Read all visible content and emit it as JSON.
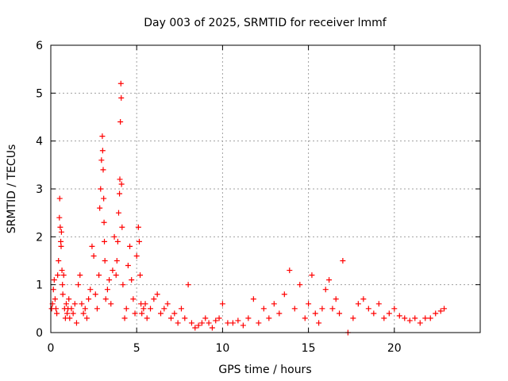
{
  "chart_data": {
    "type": "scatter",
    "title": "Day 003 of 2025, SRMTID for receiver lmmf",
    "xlabel": "GPS time / hours",
    "ylabel": "SRMTID / TECUs",
    "xlim": [
      0,
      25
    ],
    "ylim": [
      0,
      6
    ],
    "xticks": [
      0,
      5,
      10,
      15,
      20
    ],
    "yticks": [
      0,
      1,
      2,
      3,
      4,
      5,
      6
    ],
    "xtick_labels": [
      "0",
      "5",
      "10",
      "15",
      "20"
    ],
    "ytick_labels": [
      "0",
      "1",
      "2",
      "3",
      "4",
      "5",
      "6"
    ],
    "grid": true,
    "marker": "+",
    "color": "#ff0000",
    "series": [
      {
        "name": "SRMTID",
        "x": [
          0.05,
          0.1,
          0.15,
          0.2,
          0.25,
          0.3,
          0.35,
          0.4,
          0.45,
          0.5,
          0.52,
          0.55,
          0.58,
          0.6,
          0.62,
          0.65,
          0.68,
          0.7,
          0.75,
          0.8,
          0.85,
          0.9,
          0.95,
          1.0,
          1.05,
          1.1,
          1.2,
          1.3,
          1.4,
          1.5,
          1.6,
          1.7,
          1.8,
          1.9,
          2.0,
          2.1,
          2.2,
          2.3,
          2.4,
          2.5,
          2.6,
          2.7,
          2.8,
          2.85,
          2.9,
          2.95,
          3.0,
          3.02,
          3.05,
          3.08,
          3.1,
          3.12,
          3.15,
          3.2,
          3.3,
          3.4,
          3.5,
          3.6,
          3.7,
          3.8,
          3.85,
          3.9,
          3.95,
          4.0,
          4.02,
          4.05,
          4.08,
          4.1,
          4.12,
          4.15,
          4.2,
          4.3,
          4.4,
          4.5,
          4.6,
          4.7,
          4.8,
          4.9,
          5.0,
          5.1,
          5.15,
          5.2,
          5.25,
          5.3,
          5.4,
          5.5,
          5.6,
          5.8,
          6.0,
          6.2,
          6.4,
          6.6,
          6.8,
          7.0,
          7.2,
          7.4,
          7.6,
          7.8,
          8.0,
          8.2,
          8.4,
          8.6,
          8.8,
          9.0,
          9.2,
          9.4,
          9.6,
          9.8,
          10.0,
          10.3,
          10.6,
          10.9,
          11.2,
          11.5,
          11.8,
          12.1,
          12.4,
          12.7,
          13.0,
          13.3,
          13.6,
          13.9,
          14.2,
          14.5,
          14.8,
          15.0,
          15.2,
          15.4,
          15.6,
          15.8,
          16.0,
          16.2,
          16.4,
          16.6,
          16.8,
          17.0,
          17.3,
          17.6,
          17.9,
          18.2,
          18.5,
          18.8,
          19.1,
          19.4,
          19.7,
          20.0,
          20.3,
          20.6,
          20.9,
          21.2,
          21.5,
          21.8,
          22.1,
          22.4,
          22.7,
          22.9
        ],
        "y": [
          0.5,
          0.6,
          0.9,
          1.1,
          0.7,
          0.5,
          0.4,
          1.2,
          1.5,
          2.4,
          2.8,
          2.2,
          1.9,
          1.8,
          2.1,
          1.3,
          1.0,
          0.8,
          1.2,
          0.5,
          0.3,
          0.6,
          0.4,
          0.5,
          0.7,
          0.3,
          0.5,
          0.4,
          0.6,
          0.2,
          1.0,
          1.2,
          0.6,
          0.4,
          0.5,
          0.3,
          0.7,
          0.9,
          1.8,
          1.6,
          0.8,
          0.5,
          1.2,
          2.6,
          3.0,
          3.6,
          4.1,
          3.8,
          3.4,
          2.8,
          2.3,
          1.9,
          1.5,
          0.7,
          0.9,
          1.1,
          0.6,
          1.3,
          2.0,
          1.2,
          1.5,
          1.9,
          2.5,
          2.9,
          3.2,
          4.4,
          5.2,
          4.9,
          3.1,
          2.2,
          1.0,
          0.3,
          0.5,
          1.4,
          1.8,
          1.1,
          0.7,
          0.4,
          1.6,
          2.2,
          1.9,
          1.2,
          0.6,
          0.4,
          0.5,
          0.6,
          0.3,
          0.5,
          0.7,
          0.8,
          0.4,
          0.5,
          0.6,
          0.3,
          0.4,
          0.2,
          0.5,
          0.3,
          1.0,
          0.2,
          0.1,
          0.15,
          0.2,
          0.3,
          0.2,
          0.1,
          0.25,
          0.3,
          0.6,
          0.2,
          0.2,
          0.25,
          0.15,
          0.3,
          0.7,
          0.2,
          0.5,
          0.3,
          0.6,
          0.4,
          0.8,
          1.3,
          0.5,
          1.0,
          0.3,
          0.6,
          1.2,
          0.4,
          0.2,
          0.5,
          0.9,
          1.1,
          0.5,
          0.7,
          0.4,
          1.5,
          0.0,
          0.3,
          0.6,
          0.7,
          0.5,
          0.4,
          0.6,
          0.3,
          0.4,
          0.5,
          0.35,
          0.3,
          0.25,
          0.3,
          0.2,
          0.3,
          0.3,
          0.4,
          0.45,
          0.5
        ]
      }
    ]
  }
}
